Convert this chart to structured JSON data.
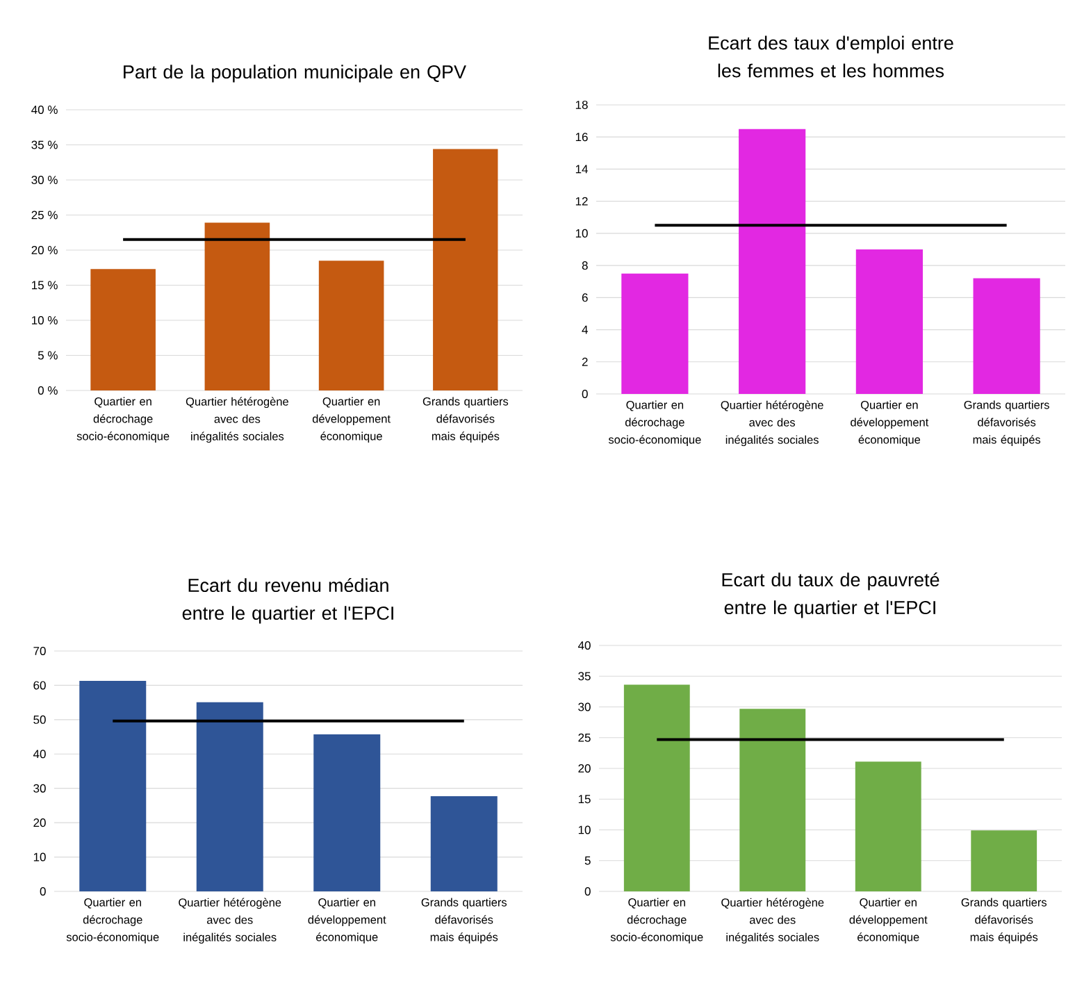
{
  "chart_data": [
    {
      "type": "bar",
      "title": "Part de la population municipale en QPV",
      "categories": [
        "Quartier en décrochage socio-économique",
        "Quartier hétérogène avec des inégalités sociales",
        "Quartier en développement économique",
        "Grands quartiers défavorisés mais équipés"
      ],
      "series": [
        {
          "color": "#c55a11",
          "values": [
            17.3,
            23.9,
            18.5,
            34.4
          ]
        },
        {
          "type": "line",
          "color": "#000000",
          "values": [
            21.5,
            21.5,
            21.5,
            21.5
          ]
        }
      ],
      "ylim": [
        0,
        40
      ],
      "yticks": [
        {
          "value": 0,
          "label": "0 %"
        },
        {
          "value": 5,
          "label": "5 %"
        },
        {
          "value": 10,
          "label": "10 %"
        },
        {
          "value": 15,
          "label": "15 %"
        },
        {
          "value": 20,
          "label": "20 %"
        },
        {
          "value": 25,
          "label": "25 %"
        },
        {
          "value": 30,
          "label": "30 %"
        },
        {
          "value": 35,
          "label": "35 %"
        },
        {
          "value": 40,
          "label": "40 %"
        }
      ],
      "grid": "y"
    },
    {
      "type": "bar",
      "title": "Ecart des taux d'emploi entre les femmes et les hommes",
      "categories": [
        "Quartier en décrochage socio-économique",
        "Quartier hétérogène avec des inégalités sociales",
        "Quartier en développement économique",
        "Grands quartiers défavorisés mais équipés"
      ],
      "series": [
        {
          "color": "#e228e2",
          "values": [
            7.5,
            16.5,
            9.0,
            7.2
          ]
        },
        {
          "type": "line",
          "color": "#000000",
          "values": [
            10.5,
            10.5,
            10.5,
            10.5
          ]
        }
      ],
      "ylim": [
        0,
        18
      ],
      "yticks": [
        0,
        2,
        4,
        6,
        8,
        10,
        12,
        14,
        16,
        18
      ],
      "grid": "y"
    },
    {
      "type": "bar",
      "title": "Ecart du revenu médian entre le quartier et l'EPCI",
      "categories": [
        "Quartier en décrochage socio-économique",
        "Quartier hétérogène avec des inégalités sociales",
        "Quartier en développement économique",
        "Grands quartiers défavorisés mais équipés"
      ],
      "series": [
        {
          "color": "#2f5597",
          "values": [
            61.3,
            55.1,
            45.7,
            27.7
          ]
        },
        {
          "type": "line",
          "color": "#000000",
          "values": [
            49.6,
            49.6,
            49.6,
            49.6
          ]
        }
      ],
      "ylim": [
        0,
        70
      ],
      "yticks": [
        0,
        10,
        20,
        30,
        40,
        50,
        60,
        70
      ],
      "grid": "y"
    },
    {
      "type": "bar",
      "title": "Ecart du taux de pauvreté entre le quartier et l'EPCI",
      "categories": [
        "Quartier en décrochage socio-économique",
        "Quartier hétérogène avec des inégalités sociales",
        "Quartier en développement économique",
        "Grands quartiers défavorisés mais équipés"
      ],
      "series": [
        {
          "color": "#70ad47",
          "values": [
            33.6,
            29.7,
            21.1,
            9.9
          ]
        },
        {
          "type": "line",
          "color": "#000000",
          "values": [
            24.7,
            24.7,
            24.7,
            24.7
          ]
        }
      ],
      "ylim": [
        0,
        40
      ],
      "yticks": [
        0,
        5,
        10,
        15,
        20,
        25,
        30,
        35,
        40
      ],
      "grid": "y"
    }
  ]
}
